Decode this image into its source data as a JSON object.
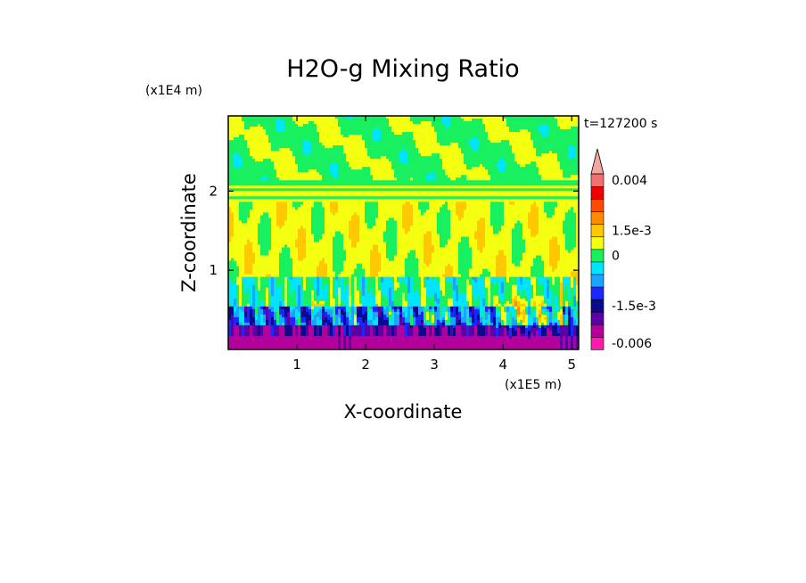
{
  "chart_data": {
    "type": "heatmap",
    "title": "H2O-g Mixing Ratio",
    "xlabel": "X-coordinate",
    "ylabel": "Z-coordinate",
    "x_scale_label": "(x1E5 m)",
    "y_scale_label": "(x1E4 m)",
    "time_label": "t=127200 s",
    "xlim": [
      0.0,
      5.1
    ],
    "ylim": [
      0.0,
      2.95
    ],
    "x_ticks": [
      {
        "value": 1,
        "label": "1"
      },
      {
        "value": 2,
        "label": "2"
      },
      {
        "value": 3,
        "label": "3"
      },
      {
        "value": 4,
        "label": "4"
      },
      {
        "value": 5,
        "label": "5"
      }
    ],
    "y_ticks": [
      {
        "value": 1,
        "label": "1"
      },
      {
        "value": 2,
        "label": "2"
      }
    ],
    "colorbar": {
      "levels": [
        {
          "color": "#ff1aae"
        },
        {
          "color": "#b3009c"
        },
        {
          "color": "#5a00a6"
        },
        {
          "color": "#0a0a8c"
        },
        {
          "color": "#1a28ff"
        },
        {
          "color": "#1aa4ff"
        },
        {
          "color": "#00e5ff"
        },
        {
          "color": "#18f060"
        },
        {
          "color": "#f5ff10"
        },
        {
          "color": "#ffc800"
        },
        {
          "color": "#ff8c00"
        },
        {
          "color": "#ff4a00"
        },
        {
          "color": "#ee0000"
        },
        {
          "color": "#f07070"
        },
        {
          "color": "#f5a6a0"
        }
      ],
      "labels": [
        {
          "level_index": 0,
          "text": "-0.006"
        },
        {
          "level_index": 3,
          "text": "-1.5e-3"
        },
        {
          "level_index": 7,
          "text": "0"
        },
        {
          "level_index": 9,
          "text": "1.5e-3"
        },
        {
          "level_index": 13,
          "text": "0.004"
        }
      ]
    },
    "field": {
      "description_of_pattern": "Mixing ratio anomaly; negative (purple/blue) near surface below ~0.3, cyan/green bumps to ~0.9, yellow mid-levels 1.0-1.8, alternating green/yellow stripes near 2.0, green aloft with yellow patches; orange positive spots between x 2.8-4.8 below z 0.7."
    }
  }
}
